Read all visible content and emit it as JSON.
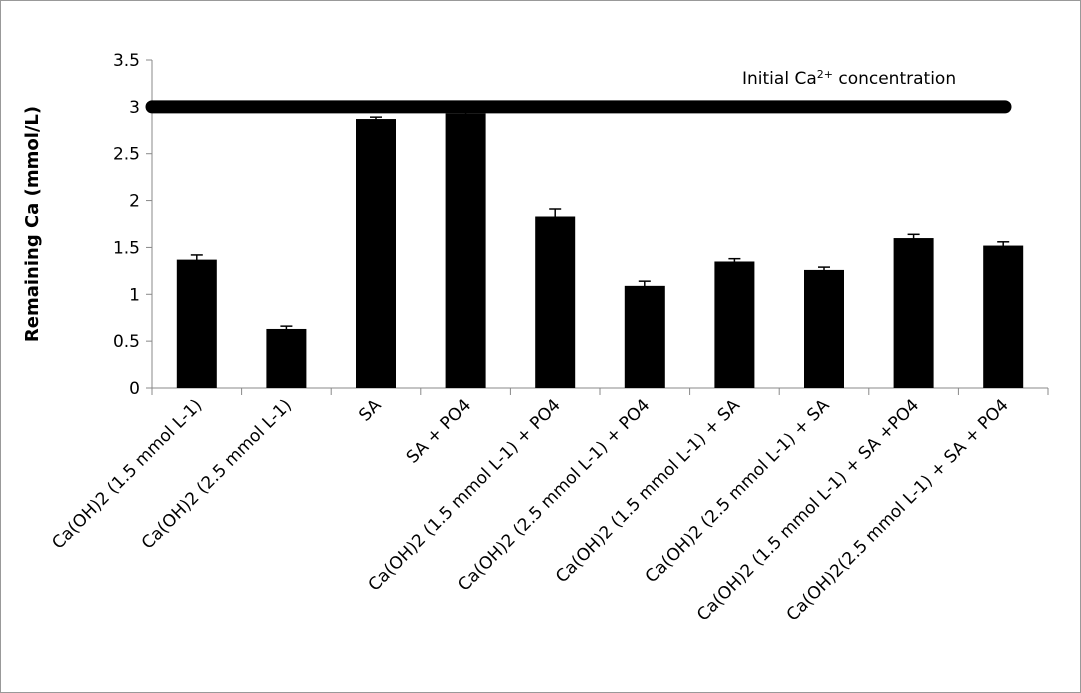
{
  "chart_data": {
    "type": "bar",
    "y_label": "Remaining Ca (mmol/L)",
    "categories": [
      "Ca(OH)2 (1.5 mmol L-1)",
      "Ca(OH)2 (2.5 mmol L-1)",
      "SA",
      "SA + PO4",
      "Ca(OH)2 (1.5 mmol L-1) + PO4",
      "Ca(OH)2 (2.5 mmol L-1) + PO4",
      "Ca(OH)2 (1.5 mmol L-1) + SA",
      "Ca(OH)2 (2.5 mmol L-1) + SA",
      "Ca(OH)2 (1.5 mmol L-1) + SA +PO4",
      "Ca(OH)2(2.5 mmol L-1) + SA + PO4"
    ],
    "values": [
      1.37,
      0.63,
      2.87,
      2.93,
      1.83,
      1.09,
      1.35,
      1.26,
      1.6,
      1.52
    ],
    "errors": [
      0.05,
      0.03,
      0.02,
      0.02,
      0.08,
      0.05,
      0.03,
      0.03,
      0.04,
      0.04
    ],
    "color": "#000000",
    "ylim": [
      0,
      3.5
    ],
    "yticks": [
      0,
      0.5,
      1,
      1.5,
      2,
      2.5,
      3,
      3.5
    ],
    "reference_line": {
      "value": 3,
      "label": [
        "Initial Ca",
        "2+",
        " concentration"
      ]
    }
  }
}
